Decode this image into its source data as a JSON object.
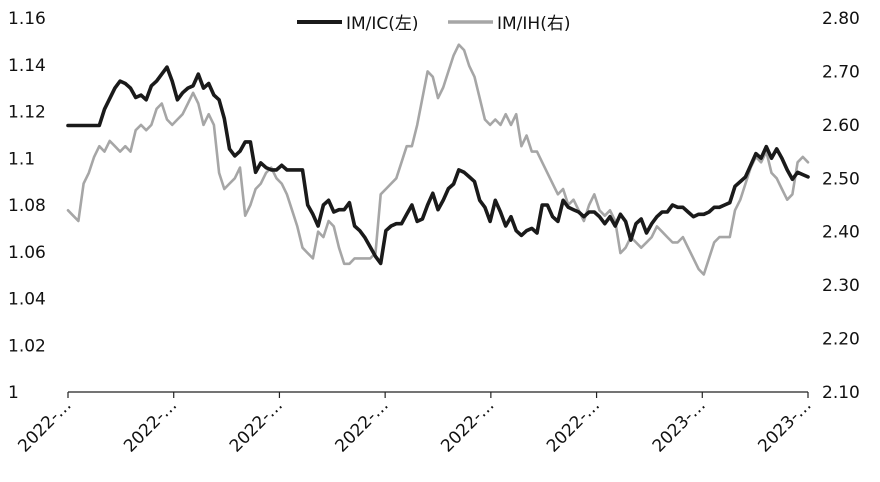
{
  "chart_data": {
    "type": "line",
    "x_tick_labels": [
      "2022-…",
      "2022-…",
      "2022-…",
      "2022-…",
      "2022-…",
      "2022-…",
      "2023-…",
      "2023-…"
    ],
    "y_left": {
      "ticks": [
        "1",
        "1.02",
        "1.04",
        "1.06",
        "1.08",
        "1.1",
        "1.12",
        "1.14",
        "1.16"
      ],
      "ylim": [
        1,
        1.16
      ]
    },
    "y_right": {
      "ticks": [
        "2.10",
        "2.20",
        "2.30",
        "2.40",
        "2.50",
        "2.60",
        "2.70",
        "2.80"
      ],
      "ylim": [
        2.1,
        2.8
      ]
    },
    "legend_position": "top-center",
    "grid": false,
    "series": [
      {
        "name": "IM/IC(左)",
        "axis": "left",
        "color": "#1a1a1a",
        "x": [
          0,
          1,
          2,
          3,
          4,
          5,
          6,
          7,
          8,
          9,
          10,
          11,
          12,
          13,
          14,
          15,
          16,
          17,
          18,
          19,
          20,
          21,
          22,
          23,
          24,
          25,
          26,
          27,
          28,
          29,
          30,
          31,
          32,
          33,
          34,
          35,
          36,
          37,
          38,
          39,
          40,
          41,
          42,
          43,
          44,
          45,
          46,
          47,
          48,
          49,
          50,
          51,
          52,
          53,
          54,
          55,
          56,
          57,
          58,
          59,
          60,
          61,
          62,
          63,
          64,
          65,
          66,
          67,
          68,
          69,
          70,
          71,
          72,
          73,
          74,
          75,
          76,
          77,
          78,
          79,
          80,
          81,
          82,
          83,
          84,
          85,
          86,
          87,
          88,
          89,
          90,
          91,
          92,
          93,
          94,
          95,
          96,
          97,
          98,
          99,
          100,
          101,
          102,
          103,
          104,
          105,
          106,
          107,
          108,
          109,
          110,
          111,
          112,
          113,
          114,
          115,
          116,
          117,
          118,
          119,
          120,
          121,
          122,
          123,
          124,
          125,
          126,
          127,
          128,
          129,
          130,
          131,
          132,
          133,
          134,
          135,
          136,
          137,
          138,
          139,
          140,
          141,
          142,
          143,
          144,
          145,
          146,
          147,
          148,
          149,
          150,
          151,
          152,
          153,
          154,
          155,
          156,
          157,
          158,
          159,
          160,
          161,
          162,
          163,
          164,
          165,
          166,
          167,
          168,
          169,
          170,
          171,
          172,
          173,
          174,
          175,
          176,
          177,
          178,
          179,
          180,
          181,
          182,
          183,
          184,
          185,
          186,
          187,
          188,
          189,
          190,
          191,
          192,
          193,
          194,
          195,
          196,
          197,
          198,
          199,
          200,
          201,
          202,
          203,
          204,
          205,
          206,
          207,
          208,
          209,
          210,
          211,
          212,
          213,
          214,
          215,
          216,
          217,
          218,
          219,
          220,
          221,
          222,
          223,
          224,
          225,
          226,
          227,
          228,
          229,
          230,
          231,
          232,
          233,
          234,
          235,
          236,
          237,
          238,
          239,
          240,
          241,
          242,
          243,
          244,
          245,
          246,
          247,
          248,
          249,
          250,
          251,
          252,
          253,
          254,
          255,
          256,
          257,
          258,
          259,
          260,
          261,
          262,
          263,
          264,
          265,
          266,
          267,
          268,
          269,
          270,
          271,
          272,
          273,
          274,
          275,
          276,
          277,
          278,
          279,
          280,
          281,
          282,
          283,
          284,
          285,
          286,
          287,
          288,
          289,
          290,
          291,
          292,
          293,
          294,
          295,
          296,
          297,
          298,
          299,
          300,
          301,
          302,
          303,
          304,
          305,
          306,
          307,
          308,
          309,
          310,
          311,
          312,
          313,
          314,
          315,
          316,
          317,
          318,
          319,
          320,
          321,
          322,
          323,
          324,
          325,
          326,
          327,
          328,
          329,
          330,
          331,
          332,
          333,
          334,
          335,
          336,
          337,
          338,
          339,
          340,
          341,
          342,
          343,
          344,
          345,
          346,
          347,
          348,
          349,
          350,
          351,
          352,
          353,
          354,
          355,
          356,
          357,
          358,
          359,
          360,
          361,
          362,
          363,
          364,
          365,
          366,
          367,
          368,
          369,
          370,
          371,
          372,
          373,
          374,
          375,
          376,
          377,
          378,
          379,
          380,
          381,
          382,
          383,
          384,
          385,
          386,
          387,
          388,
          389,
          390,
          391,
          392,
          393,
          394,
          395,
          396,
          397,
          398,
          399,
          400,
          401,
          402,
          403,
          404,
          405,
          406,
          407,
          408,
          409,
          410,
          411,
          412,
          413,
          414,
          415,
          416,
          417,
          418,
          419,
          420,
          421,
          422,
          423,
          424,
          425,
          426,
          427,
          428,
          429,
          430,
          431,
          432,
          433,
          434,
          435,
          436,
          437,
          438,
          439,
          440,
          441,
          442,
          443,
          444,
          445,
          446,
          447,
          448,
          449,
          450,
          451,
          452,
          453,
          454,
          455,
          456,
          457,
          458,
          459,
          460,
          461,
          462,
          463,
          464,
          465,
          466,
          467,
          468,
          469,
          470,
          471,
          472,
          473,
          474,
          475,
          476,
          477,
          478,
          479,
          480,
          481,
          482,
          483,
          484,
          485,
          486,
          487,
          488,
          489,
          490,
          491,
          492,
          493,
          494,
          495,
          496,
          497,
          498,
          499,
          500,
          501,
          502,
          503,
          504,
          505,
          506,
          507,
          508,
          509,
          510,
          511,
          512,
          513,
          514,
          515,
          516,
          517,
          518,
          519,
          520,
          521,
          522,
          523,
          524,
          525,
          526,
          527,
          528,
          529,
          530,
          531,
          532,
          533,
          534,
          535,
          536,
          537,
          538,
          539,
          540,
          541,
          542,
          543,
          544,
          545,
          546,
          547,
          548,
          549,
          550,
          551,
          552,
          553,
          554,
          555,
          556,
          557,
          558,
          559,
          560,
          561,
          562,
          563,
          564,
          565,
          566,
          567,
          568,
          569,
          570,
          571,
          572,
          573,
          574,
          575,
          576,
          577,
          578,
          579,
          580,
          581,
          582,
          583,
          584,
          585,
          586,
          587,
          588,
          589,
          590,
          591,
          592,
          593,
          594,
          595,
          596,
          597,
          598,
          599,
          600,
          601,
          602,
          603,
          604,
          605,
          606,
          607,
          608,
          609,
          610,
          611,
          612,
          613,
          614,
          615,
          616,
          617,
          618,
          619,
          620,
          621,
          622,
          623,
          624,
          625,
          626,
          627,
          628,
          629,
          630,
          631,
          632,
          633,
          634,
          635,
          636,
          637,
          638,
          639,
          640,
          641,
          642,
          643,
          644,
          645,
          646,
          647,
          648,
          649,
          650,
          651,
          652,
          653,
          654,
          655,
          656,
          657,
          658,
          659,
          660,
          661,
          662,
          663,
          664,
          665,
          666,
          667,
          668,
          669,
          670,
          671,
          672,
          673,
          674,
          675,
          676,
          677,
          678,
          679,
          680,
          681,
          682,
          683,
          684,
          685,
          686,
          687,
          688,
          689,
          690,
          691,
          692,
          693,
          694,
          695,
          696,
          697,
          698,
          699,
          700,
          701,
          702,
          703,
          704,
          705,
          706,
          707,
          708,
          709,
          710,
          711,
          712,
          713,
          714,
          715,
          716,
          717,
          718,
          719,
          720,
          721,
          722,
          723,
          724,
          725,
          726,
          727,
          728,
          729,
          730,
          731,
          732,
          733,
          734,
          735,
          736,
          737,
          738,
          739,
          740
        ],
        "_comment_x": "x is trading-day index; only selected points are used below",
        "points": []
      }
    ]
  }
}
